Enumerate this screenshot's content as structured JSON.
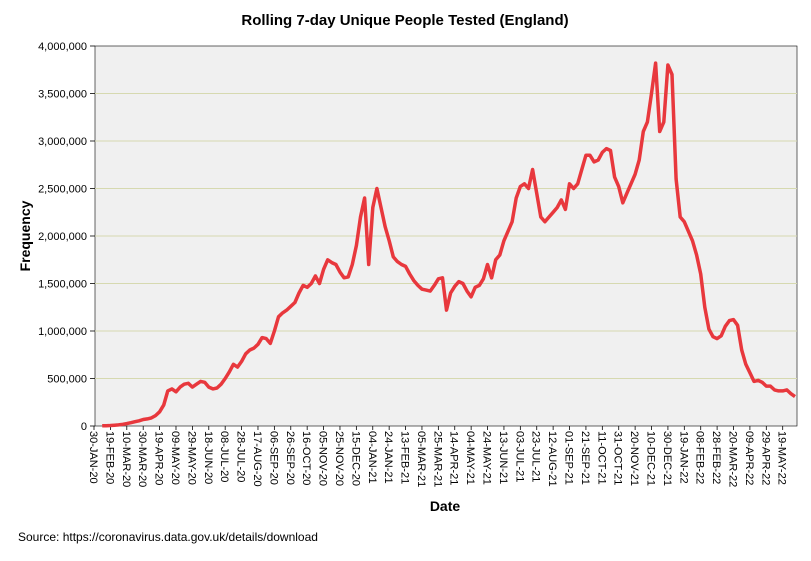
{
  "chart_data": {
    "type": "line",
    "title": "Rolling 7-day Unique People Tested (England)",
    "x_label": "Date",
    "y_label": "Frequency",
    "source": "Source: https://coronavirus.data.gov.uk/details/download",
    "categories": [
      "30-JAN-20",
      null,
      null,
      null,
      "19-FEB-20",
      null,
      null,
      null,
      "10-MAR-20",
      null,
      null,
      null,
      "30-MAR-20",
      null,
      null,
      null,
      "19-APR-20",
      null,
      null,
      null,
      "09-MAY-20",
      null,
      null,
      null,
      "29-MAY-20",
      null,
      null,
      null,
      "18-JUN-20",
      null,
      null,
      null,
      "08-JUL-20",
      null,
      null,
      null,
      "28-JUL-20",
      null,
      null,
      null,
      "17-AUG-20",
      null,
      null,
      null,
      "06-SEP-20",
      null,
      null,
      null,
      "26-SEP-20",
      null,
      null,
      null,
      "16-OCT-20",
      null,
      null,
      null,
      "05-NOV-20",
      null,
      null,
      null,
      "25-NOV-20",
      null,
      null,
      null,
      "15-DEC-20",
      null,
      null,
      null,
      "04-JAN-21",
      null,
      null,
      null,
      "24-JAN-21",
      null,
      null,
      null,
      "13-FEB-21",
      null,
      null,
      null,
      "05-MAR-21",
      null,
      null,
      null,
      "25-MAR-21",
      null,
      null,
      null,
      "14-APR-21",
      null,
      null,
      null,
      "04-MAY-21",
      null,
      null,
      null,
      "24-MAY-21",
      null,
      null,
      null,
      "13-JUN-21",
      null,
      null,
      null,
      "03-JUL-21",
      null,
      null,
      null,
      "23-JUL-21",
      null,
      null,
      null,
      "12-AUG-21",
      null,
      null,
      null,
      "01-SEP-21",
      null,
      null,
      null,
      "21-SEP-21",
      null,
      null,
      null,
      "11-OCT-21",
      null,
      null,
      null,
      "31-OCT-21",
      null,
      null,
      null,
      "20-NOV-21",
      null,
      null,
      null,
      "10-DEC-21",
      null,
      null,
      null,
      "30-DEC-21",
      null,
      null,
      null,
      "19-JAN-22",
      null,
      null,
      null,
      "08-FEB-22",
      null,
      null,
      null,
      "28-FEB-22",
      null,
      null,
      null,
      "20-MAR-22",
      null,
      null,
      null,
      "09-APR-22",
      null,
      null,
      null,
      "29-APR-22",
      null,
      null,
      null,
      "19-MAY-22",
      null,
      null,
      null
    ],
    "series": [
      {
        "name": "Frequency",
        "color": "#e8383d",
        "values": [
          null,
          null,
          2000,
          3000,
          5000,
          8000,
          12000,
          18000,
          25000,
          35000,
          45000,
          55000,
          68000,
          75000,
          85000,
          110000,
          150000,
          220000,
          370000,
          390000,
          360000,
          410000,
          440000,
          450000,
          410000,
          440000,
          470000,
          460000,
          410000,
          390000,
          400000,
          440000,
          500000,
          570000,
          650000,
          620000,
          680000,
          760000,
          800000,
          820000,
          860000,
          930000,
          920000,
          870000,
          1000000,
          1150000,
          1190000,
          1220000,
          1260000,
          1300000,
          1400000,
          1480000,
          1460000,
          1500000,
          1580000,
          1500000,
          1650000,
          1750000,
          1720000,
          1700000,
          1620000,
          1560000,
          1570000,
          1700000,
          1900000,
          2200000,
          2400000,
          1700000,
          2300000,
          2500000,
          2300000,
          2100000,
          1950000,
          1780000,
          1730000,
          1700000,
          1680000,
          1600000,
          1530000,
          1480000,
          1440000,
          1430000,
          1420000,
          1480000,
          1550000,
          1560000,
          1220000,
          1400000,
          1470000,
          1520000,
          1500000,
          1420000,
          1360000,
          1460000,
          1480000,
          1550000,
          1700000,
          1560000,
          1750000,
          1800000,
          1950000,
          2050000,
          2150000,
          2400000,
          2520000,
          2550000,
          2500000,
          2700000,
          2450000,
          2200000,
          2150000,
          2200000,
          2250000,
          2300000,
          2380000,
          2280000,
          2550000,
          2500000,
          2550000,
          2700000,
          2850000,
          2850000,
          2780000,
          2800000,
          2880000,
          2920000,
          2900000,
          2620000,
          2520000,
          2350000,
          2450000,
          2550000,
          2650000,
          2800000,
          3100000,
          3200000,
          3500000,
          3820000,
          3100000,
          3200000,
          3800000,
          3700000,
          2600000,
          2200000,
          2150000,
          2050000,
          1950000,
          1800000,
          1600000,
          1250000,
          1020000,
          940000,
          920000,
          950000,
          1050000,
          1110000,
          1120000,
          1060000,
          800000,
          650000,
          560000,
          470000,
          480000,
          460000,
          420000,
          420000,
          380000,
          370000,
          370000,
          380000,
          340000,
          310000
        ]
      }
    ],
    "ylim": [
      0,
      4000000
    ],
    "yticks": [
      0,
      {
        "value": 500000,
        "label": "500,000"
      },
      {
        "value": 1000000,
        "label": "1,000,000"
      },
      {
        "value": 1500000,
        "label": "1,500,000"
      },
      {
        "value": 2000000,
        "label": "2,000,000"
      },
      {
        "value": 2500000,
        "label": "2,500,000"
      },
      {
        "value": 3000000,
        "label": "3,000,000"
      },
      {
        "value": 3500000,
        "label": "3,500,000"
      },
      {
        "value": 4000000,
        "label": "4,000,000"
      }
    ],
    "grid": true
  }
}
